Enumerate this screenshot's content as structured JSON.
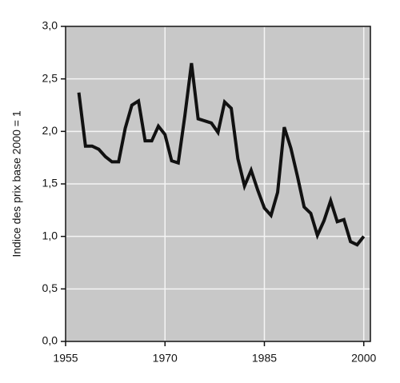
{
  "chart_data": {
    "type": "line",
    "y_label": "Indice des prix base 2000 = 1",
    "x": [
      1957,
      1958,
      1959,
      1960,
      1961,
      1962,
      1963,
      1964,
      1965,
      1966,
      1967,
      1968,
      1969,
      1970,
      1971,
      1972,
      1973,
      1974,
      1975,
      1976,
      1977,
      1978,
      1979,
      1980,
      1981,
      1982,
      1983,
      1984,
      1985,
      1986,
      1987,
      1988,
      1989,
      1990,
      1991,
      1992,
      1993,
      1994,
      1995,
      1996,
      1997,
      1998,
      1999,
      2000
    ],
    "values": [
      2.37,
      1.86,
      1.86,
      1.83,
      1.76,
      1.71,
      1.71,
      2.03,
      2.25,
      2.29,
      1.91,
      1.91,
      2.05,
      1.97,
      1.72,
      1.7,
      2.15,
      2.65,
      2.12,
      2.1,
      2.08,
      1.99,
      2.28,
      2.22,
      1.74,
      1.48,
      1.63,
      1.44,
      1.27,
      1.2,
      1.42,
      2.04,
      1.84,
      1.57,
      1.28,
      1.22,
      1.01,
      1.15,
      1.34,
      1.14,
      1.16,
      0.95,
      0.92,
      1.0
    ],
    "color": "#111111",
    "xlim": [
      1955,
      2001
    ],
    "xticks": [
      1955,
      1970,
      1985,
      2000
    ],
    "ylim": [
      0,
      3
    ],
    "yticks": [
      {
        "value": 0,
        "label": "0,0"
      },
      {
        "value": 0.5,
        "label": "0,5"
      },
      {
        "value": 1,
        "label": "1,0"
      },
      {
        "value": 1.5,
        "label": "1,5"
      },
      {
        "value": 2,
        "label": "2,0"
      },
      {
        "value": 2.5,
        "label": "2,5"
      },
      {
        "value": 3,
        "label": "3,0"
      }
    ],
    "grid": true
  }
}
